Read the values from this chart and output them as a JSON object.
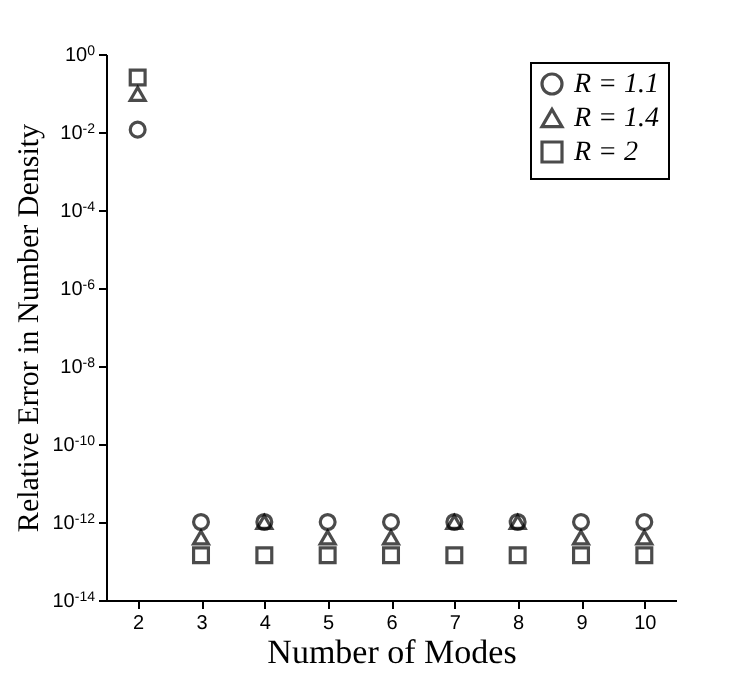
{
  "chart_data": {
    "type": "scatter",
    "xlabel": "Number of Modes",
    "ylabel": "Relative Error in Number Density",
    "x": [
      2,
      3,
      4,
      5,
      6,
      7,
      8,
      9,
      10
    ],
    "series": [
      {
        "name": "R = 1.1",
        "color": "#000000",
        "marker": "circle",
        "values": [
          0.0115,
          1e-12,
          1e-12,
          1e-12,
          1e-12,
          1e-12,
          1e-12,
          1e-12,
          1e-12
        ]
      },
      {
        "name": "R = 1.4",
        "color": "#000000",
        "marker": "triangle",
        "values": [
          0.095,
          4e-13,
          1e-12,
          4e-13,
          4e-13,
          1e-12,
          1e-12,
          4e-13,
          4e-13
        ]
      },
      {
        "name": "R = 2",
        "color": "#000000",
        "marker": "square",
        "values": [
          0.25,
          1.4e-13,
          1.4e-13,
          1.4e-13,
          1.4e-13,
          1.4e-13,
          1.4e-13,
          1.4e-13,
          1.4e-13
        ]
      }
    ],
    "xlim": [
      1.5,
      10.5
    ],
    "xticks": [
      2,
      3,
      4,
      5,
      6,
      7,
      8,
      9,
      10
    ],
    "ylim": [
      1e-14,
      1
    ],
    "yticks": [
      {
        "value": 1e-14,
        "label": "10$^{-14}$"
      },
      {
        "value": 1e-12,
        "label": "10$^{-12}$"
      },
      {
        "value": 1e-10,
        "label": "10$^{-10}$"
      },
      {
        "value": 1e-08,
        "label": "10$^{-8}$"
      },
      {
        "value": 1e-06,
        "label": "10$^{-6}$"
      },
      {
        "value": 0.0001,
        "label": "10$^{-4}$"
      },
      {
        "value": 0.01,
        "label": "10$^{-2}$"
      },
      {
        "value": 1,
        "label": "10$^{0}$"
      }
    ],
    "log": "y",
    "grid": false,
    "legend": "top right"
  }
}
